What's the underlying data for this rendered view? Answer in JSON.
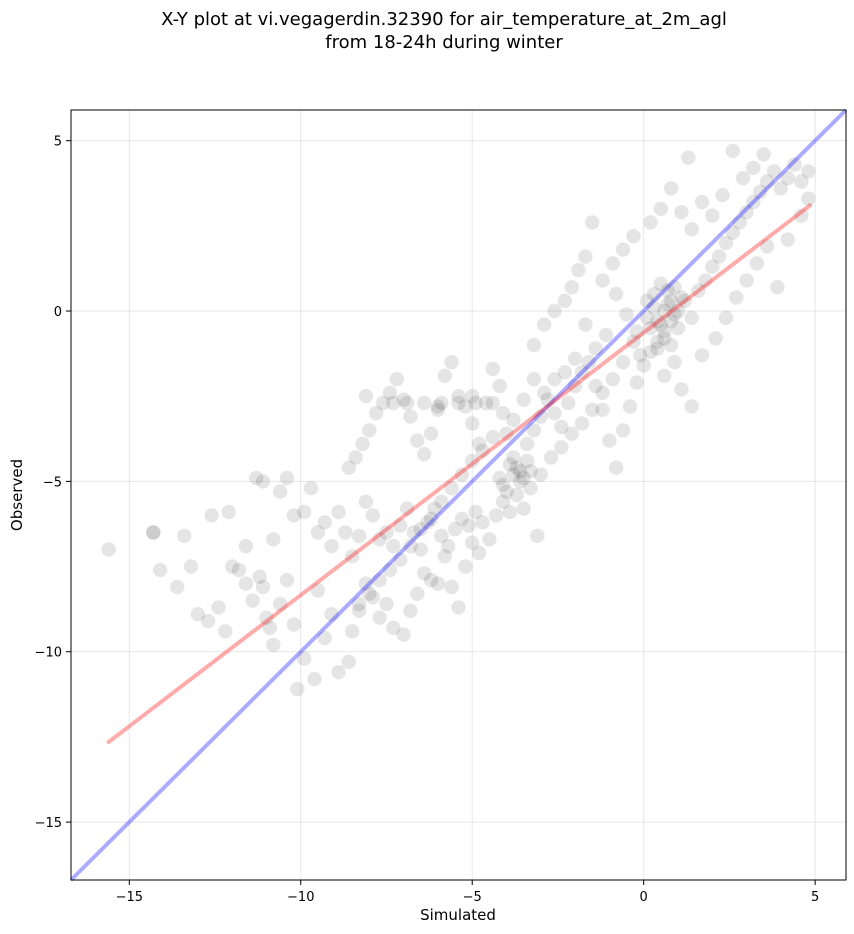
{
  "chart_data": {
    "type": "scatter",
    "title": "X-Y plot at vi.vegagerdin.32390 for air_temperature_at_2m_agl",
    "subtitle": "from 18-24h during winter",
    "xlabel": "Simulated",
    "ylabel": "Observed",
    "xlim": [
      -16.7,
      5.9
    ],
    "ylim": [
      -16.7,
      5.9
    ],
    "xticks": [
      -15,
      -10,
      -5,
      0,
      5
    ],
    "yticks": [
      5,
      0,
      -5,
      -10,
      -15
    ],
    "xtick_labels": [
      "−15",
      "−10",
      "−5",
      "0",
      "5"
    ],
    "ytick_labels": [
      "5",
      "0",
      "−5",
      "−10",
      "−15"
    ],
    "grid": true,
    "marker_color": "#000000",
    "marker_alpha": 0.1,
    "identity_line": {
      "color": "#0000ff",
      "alpha": 0.33,
      "from": [
        -16.7,
        -16.7
      ],
      "to": [
        5.9,
        5.9
      ]
    },
    "fit_line": {
      "color": "#ff0000",
      "alpha": 0.33,
      "from": [
        -15.6,
        -12.65
      ],
      "to": [
        4.85,
        3.1
      ]
    },
    "points_representative": [
      [
        -15.6,
        -7.0
      ],
      [
        -14.3,
        -6.5
      ],
      [
        -14.3,
        -6.5
      ],
      [
        -14.1,
        -7.6
      ],
      [
        -13.6,
        -8.1
      ],
      [
        -13.4,
        -6.6
      ],
      [
        -13.2,
        -7.5
      ],
      [
        -13.0,
        -8.9
      ],
      [
        -12.7,
        -9.1
      ],
      [
        -12.4,
        -8.7
      ],
      [
        -12.2,
        -9.4
      ],
      [
        -12.0,
        -7.5
      ],
      [
        -11.8,
        -7.6
      ],
      [
        -11.6,
        -8.0
      ],
      [
        -11.4,
        -8.5
      ],
      [
        -11.2,
        -7.8
      ],
      [
        -11.1,
        -8.1
      ],
      [
        -11.0,
        -9.0
      ],
      [
        -10.9,
        -9.3
      ],
      [
        -10.8,
        -9.8
      ],
      [
        -10.6,
        -8.6
      ],
      [
        -10.4,
        -7.9
      ],
      [
        -10.2,
        -9.2
      ],
      [
        -10.1,
        -11.1
      ],
      [
        -9.9,
        -10.2
      ],
      [
        -9.6,
        -10.8
      ],
      [
        -9.5,
        -8.2
      ],
      [
        -9.3,
        -9.6
      ],
      [
        -9.1,
        -8.9
      ],
      [
        -8.9,
        -10.6
      ],
      [
        -8.6,
        -10.3
      ],
      [
        -8.5,
        -9.4
      ],
      [
        -8.3,
        -8.6
      ],
      [
        -8.1,
        -8.0
      ],
      [
        -7.9,
        -8.4
      ],
      [
        -7.7,
        -9.0
      ],
      [
        -7.5,
        -8.6
      ],
      [
        -7.3,
        -9.3
      ],
      [
        -7.0,
        -9.5
      ],
      [
        -6.8,
        -8.8
      ],
      [
        -6.6,
        -8.3
      ],
      [
        -6.4,
        -7.7
      ],
      [
        -6.2,
        -7.9
      ],
      [
        -6.0,
        -8.0
      ],
      [
        -5.8,
        -7.2
      ],
      [
        -5.6,
        -8.1
      ],
      [
        -5.4,
        -8.7
      ],
      [
        -5.2,
        -7.5
      ],
      [
        -5.0,
        -6.8
      ],
      [
        -4.8,
        -7.1
      ],
      [
        -12.6,
        -6.0
      ],
      [
        -12.1,
        -5.9
      ],
      [
        -11.6,
        -6.9
      ],
      [
        -11.3,
        -4.9
      ],
      [
        -11.1,
        -5.0
      ],
      [
        -10.8,
        -6.7
      ],
      [
        -10.6,
        -5.3
      ],
      [
        -10.4,
        -4.9
      ],
      [
        -10.2,
        -6.0
      ],
      [
        -9.9,
        -5.9
      ],
      [
        -9.7,
        -5.2
      ],
      [
        -9.5,
        -6.5
      ],
      [
        -9.3,
        -6.2
      ],
      [
        -9.1,
        -6.9
      ],
      [
        -8.9,
        -5.9
      ],
      [
        -8.7,
        -6.5
      ],
      [
        -8.5,
        -7.2
      ],
      [
        -8.3,
        -6.6
      ],
      [
        -8.1,
        -5.6
      ],
      [
        -7.9,
        -6.0
      ],
      [
        -7.7,
        -6.7
      ],
      [
        -7.5,
        -6.5
      ],
      [
        -7.3,
        -6.9
      ],
      [
        -7.1,
        -6.3
      ],
      [
        -6.9,
        -5.8
      ],
      [
        -6.7,
        -6.5
      ],
      [
        -6.5,
        -7.0
      ],
      [
        -6.3,
        -6.2
      ],
      [
        -6.1,
        -5.8
      ],
      [
        -5.9,
        -6.6
      ],
      [
        -5.7,
        -6.9
      ],
      [
        -5.5,
        -6.4
      ],
      [
        -5.3,
        -6.1
      ],
      [
        -5.1,
        -6.3
      ],
      [
        -4.9,
        -5.9
      ],
      [
        -4.7,
        -6.2
      ],
      [
        -4.5,
        -6.7
      ],
      [
        -4.3,
        -6.0
      ],
      [
        -4.1,
        -5.6
      ],
      [
        -3.9,
        -5.9
      ],
      [
        -3.7,
        -5.4
      ],
      [
        -3.5,
        -5.8
      ],
      [
        -3.3,
        -5.2
      ],
      [
        -3.1,
        -6.6
      ],
      [
        -8.6,
        -4.6
      ],
      [
        -8.4,
        -4.3
      ],
      [
        -8.2,
        -3.9
      ],
      [
        -8.0,
        -3.5
      ],
      [
        -7.8,
        -3.0
      ],
      [
        -7.6,
        -2.7
      ],
      [
        -7.4,
        -2.4
      ],
      [
        -7.2,
        -2.0
      ],
      [
        -7.0,
        -2.6
      ],
      [
        -6.8,
        -3.1
      ],
      [
        -6.6,
        -3.8
      ],
      [
        -6.4,
        -4.2
      ],
      [
        -6.2,
        -3.6
      ],
      [
        -6.0,
        -2.8
      ],
      [
        -5.8,
        -1.9
      ],
      [
        -5.6,
        -1.5
      ],
      [
        -5.4,
        -2.5
      ],
      [
        -5.2,
        -2.8
      ],
      [
        -5.0,
        -3.3
      ],
      [
        -4.8,
        -3.9
      ],
      [
        -4.6,
        -2.7
      ],
      [
        -4.4,
        -1.7
      ],
      [
        -4.2,
        -2.2
      ],
      [
        -4.0,
        -3.6
      ],
      [
        -3.8,
        -4.3
      ],
      [
        -3.6,
        -4.7
      ],
      [
        -3.4,
        -3.9
      ],
      [
        -3.2,
        -3.5
      ],
      [
        -3.0,
        -3.1
      ],
      [
        -2.8,
        -2.6
      ],
      [
        -2.6,
        -3.0
      ],
      [
        -2.4,
        -3.4
      ],
      [
        -2.2,
        -2.7
      ],
      [
        -2.0,
        -2.2
      ],
      [
        -1.8,
        -1.8
      ],
      [
        -1.6,
        -1.5
      ],
      [
        -1.4,
        -2.2
      ],
      [
        -1.2,
        -2.9
      ],
      [
        -1.0,
        -3.8
      ],
      [
        -0.8,
        -4.6
      ],
      [
        -0.6,
        -3.5
      ],
      [
        -0.4,
        -2.8
      ],
      [
        -0.2,
        -2.1
      ],
      [
        0.0,
        -1.6
      ],
      [
        0.2,
        -1.2
      ],
      [
        0.4,
        -0.9
      ],
      [
        0.6,
        -0.6
      ],
      [
        0.8,
        -0.3
      ],
      [
        1.0,
        0.0
      ],
      [
        1.2,
        0.3
      ],
      [
        1.4,
        -0.2
      ],
      [
        1.6,
        0.6
      ],
      [
        1.8,
        0.9
      ],
      [
        2.0,
        1.3
      ],
      [
        2.2,
        1.6
      ],
      [
        2.4,
        2.0
      ],
      [
        2.6,
        2.3
      ],
      [
        2.8,
        2.6
      ],
      [
        3.0,
        2.9
      ],
      [
        3.2,
        3.2
      ],
      [
        3.4,
        3.5
      ],
      [
        3.6,
        3.8
      ],
      [
        3.8,
        4.1
      ],
      [
        4.0,
        3.6
      ],
      [
        4.2,
        3.9
      ],
      [
        4.4,
        4.3
      ],
      [
        4.6,
        3.8
      ],
      [
        4.8,
        4.1
      ],
      [
        -3.2,
        -1.0
      ],
      [
        -2.9,
        -0.4
      ],
      [
        -2.6,
        0.0
      ],
      [
        -2.3,
        0.3
      ],
      [
        -2.1,
        0.7
      ],
      [
        -1.9,
        1.2
      ],
      [
        -1.7,
        1.6
      ],
      [
        -1.5,
        2.6
      ],
      [
        -1.2,
        0.9
      ],
      [
        -0.9,
        1.4
      ],
      [
        -0.6,
        1.8
      ],
      [
        -0.3,
        2.2
      ],
      [
        0.2,
        2.6
      ],
      [
        0.5,
        3.0
      ],
      [
        0.8,
        3.6
      ],
      [
        1.1,
        2.9
      ],
      [
        1.4,
        2.4
      ],
      [
        1.7,
        3.2
      ],
      [
        2.0,
        2.8
      ],
      [
        2.3,
        3.4
      ],
      [
        2.6,
        4.7
      ],
      [
        2.9,
        3.9
      ],
      [
        3.2,
        4.2
      ],
      [
        3.5,
        4.6
      ],
      [
        1.3,
        4.5
      ],
      [
        0.6,
        -1.9
      ],
      [
        0.9,
        -1.5
      ],
      [
        1.1,
        -2.3
      ],
      [
        1.4,
        -2.8
      ],
      [
        1.7,
        -1.3
      ],
      [
        2.1,
        -0.8
      ],
      [
        2.4,
        -0.2
      ],
      [
        2.7,
        0.4
      ],
      [
        3.0,
        0.9
      ],
      [
        3.3,
        1.4
      ],
      [
        3.6,
        1.9
      ],
      [
        3.9,
        0.7
      ],
      [
        4.2,
        2.1
      ],
      [
        4.6,
        2.8
      ],
      [
        4.8,
        3.3
      ],
      [
        -0.2,
        -0.6
      ],
      [
        0.1,
        -0.2
      ],
      [
        0.3,
        0.1
      ],
      [
        0.5,
        -0.4
      ],
      [
        0.7,
        0.2
      ],
      [
        0.9,
        -0.1
      ],
      [
        1.1,
        0.4
      ],
      [
        0.4,
        -1.1
      ],
      [
        -0.1,
        -1.3
      ],
      [
        0.6,
        -0.8
      ],
      [
        0.8,
        -1.0
      ],
      [
        -0.5,
        -0.1
      ],
      [
        -0.8,
        0.5
      ],
      [
        -1.1,
        -0.7
      ],
      [
        -1.4,
        -1.1
      ],
      [
        -1.7,
        -0.4
      ],
      [
        -2.0,
        -1.4
      ],
      [
        -2.3,
        -1.8
      ],
      [
        -2.6,
        -2.0
      ],
      [
        -2.9,
        -2.4
      ],
      [
        -3.2,
        -2.0
      ],
      [
        -3.5,
        -2.6
      ],
      [
        -3.8,
        -3.2
      ],
      [
        -4.1,
        -3.0
      ],
      [
        -4.4,
        -3.7
      ],
      [
        -4.7,
        -4.1
      ],
      [
        -5.0,
        -4.4
      ],
      [
        -5.3,
        -4.8
      ],
      [
        -5.6,
        -5.2
      ],
      [
        -5.9,
        -5.6
      ],
      [
        -6.2,
        -6.1
      ],
      [
        -6.5,
        -6.4
      ],
      [
        -6.8,
        -6.9
      ],
      [
        -7.1,
        -7.3
      ],
      [
        -7.4,
        -7.6
      ],
      [
        -7.7,
        -7.9
      ],
      [
        -8.0,
        -8.3
      ],
      [
        -8.3,
        -8.8
      ],
      [
        -4.2,
        -4.9
      ],
      [
        -4.0,
        -5.3
      ],
      [
        -3.8,
        -4.8
      ],
      [
        -3.6,
        -5.0
      ],
      [
        -3.9,
        -4.5
      ],
      [
        -3.7,
        -4.6
      ],
      [
        -3.5,
        -4.9
      ],
      [
        -4.1,
        -5.1
      ],
      [
        -3.4,
        -4.4
      ],
      [
        -3.3,
        -4.7
      ],
      [
        -6.4,
        -2.7
      ],
      [
        -5.9,
        -2.7
      ],
      [
        -5.4,
        -2.7
      ],
      [
        -4.9,
        -2.7
      ],
      [
        -4.4,
        -2.7
      ],
      [
        -6.9,
        -2.7
      ],
      [
        -7.3,
        -2.7
      ],
      [
        -8.1,
        -2.5
      ],
      [
        -6.0,
        -2.9
      ],
      [
        -5.0,
        -2.5
      ],
      [
        0.3,
        0.5
      ],
      [
        0.5,
        0.8
      ],
      [
        0.7,
        0.6
      ],
      [
        0.2,
        -0.5
      ],
      [
        0.4,
        -0.3
      ],
      [
        0.6,
        0.0
      ],
      [
        0.8,
        0.3
      ],
      [
        1.0,
        -0.5
      ],
      [
        0.9,
        0.7
      ],
      [
        0.1,
        0.3
      ],
      [
        -0.3,
        -0.9
      ],
      [
        -0.6,
        -1.5
      ],
      [
        -0.9,
        -2.0
      ],
      [
        -1.2,
        -2.4
      ],
      [
        -1.5,
        -2.9
      ],
      [
        -1.8,
        -3.3
      ],
      [
        -2.1,
        -3.6
      ],
      [
        -2.4,
        -4.0
      ],
      [
        -2.7,
        -4.3
      ],
      [
        -3.0,
        -4.8
      ]
    ]
  }
}
